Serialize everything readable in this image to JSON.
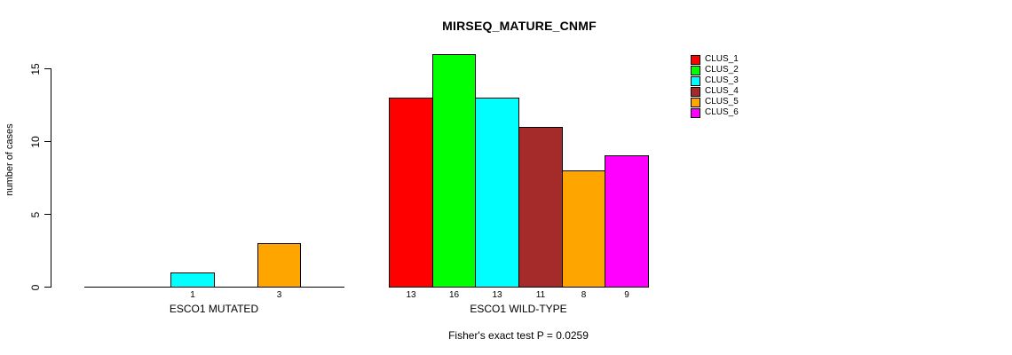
{
  "chart_data": {
    "type": "bar",
    "title": "MIRSEQ_MATURE_CNMF",
    "ylabel": "number of cases",
    "xlabel": "",
    "yticks": [
      0,
      5,
      10,
      15
    ],
    "ylim": [
      0,
      15
    ],
    "grid": false,
    "legend_position": "top-right",
    "legend_entries": [
      "CLUS_1",
      "CLUS_2",
      "CLUS_3",
      "CLUS_4",
      "CLUS_5",
      "CLUS_6"
    ],
    "colors": [
      "#FF0000",
      "#00FF00",
      "#00FFFF",
      "#A52A2A",
      "#FFA500",
      "#FF00FF"
    ],
    "bar_border_color": "#000000",
    "groups": [
      {
        "label": "ESCO1 MUTATED",
        "values": [
          0,
          0,
          1,
          0,
          3,
          0
        ]
      },
      {
        "label": "ESCO1 WILD-TYPE",
        "values": [
          13,
          16,
          13,
          11,
          8,
          9
        ]
      }
    ],
    "footnote": "Fisher's exact test P = 0.0259"
  }
}
